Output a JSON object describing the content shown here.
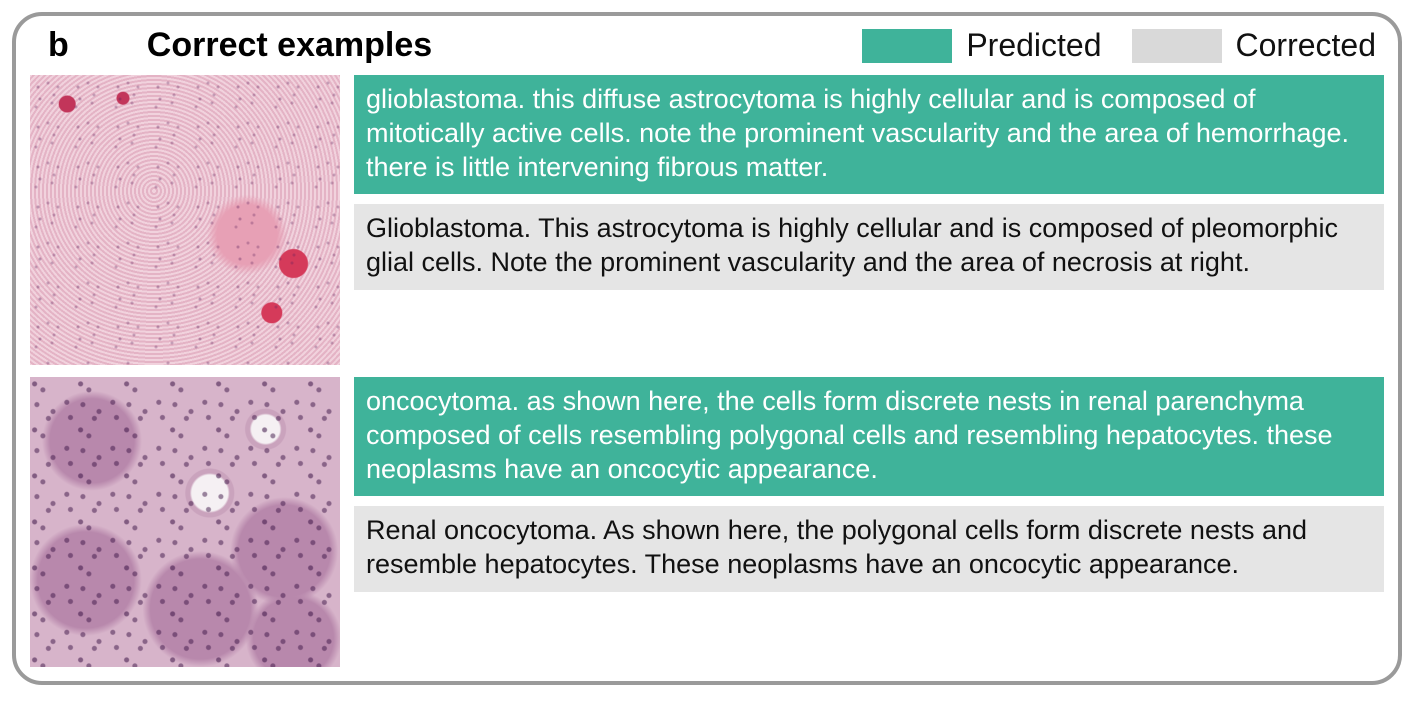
{
  "panel": {
    "letter": "b",
    "title": "Correct examples"
  },
  "legend": {
    "predicted": {
      "label": "Predicted",
      "color": "#3fb39a"
    },
    "corrected": {
      "label": "Corrected",
      "color": "#d9d9d9"
    }
  },
  "colors": {
    "border": "#9a9a9a",
    "predicted_bg": "#3fb39a",
    "predicted_text": "#ffffff",
    "corrected_bg": "#e5e5e5",
    "corrected_text": "#111111"
  },
  "examples": [
    {
      "image_alt": "H&E histology of glioblastoma with high cellularity and hemorrhage",
      "predicted": "glioblastoma. this diffuse astrocytoma is highly cellular and is composed of mitotically active cells. note the prominent vascularity and the area of hemorrhage. there is little intervening fibrous matter.",
      "corrected": "Glioblastoma. This astrocytoma is highly cellular and is composed of pleomorphic glial cells. Note the prominent vascularity and the area of necrosis at right."
    },
    {
      "image_alt": "H&E histology of renal oncocytoma with nested polygonal cells",
      "predicted": "oncocytoma. as shown here, the cells form discrete nests in renal parenchyma composed of cells resembling polygonal cells and resembling hepatocytes. these neoplasms have an oncocytic appearance.",
      "corrected": "Renal oncocytoma. As shown here, the polygonal cells form discrete nests and resemble hepatocytes. These neoplasms have an oncocytic appearance."
    }
  ]
}
